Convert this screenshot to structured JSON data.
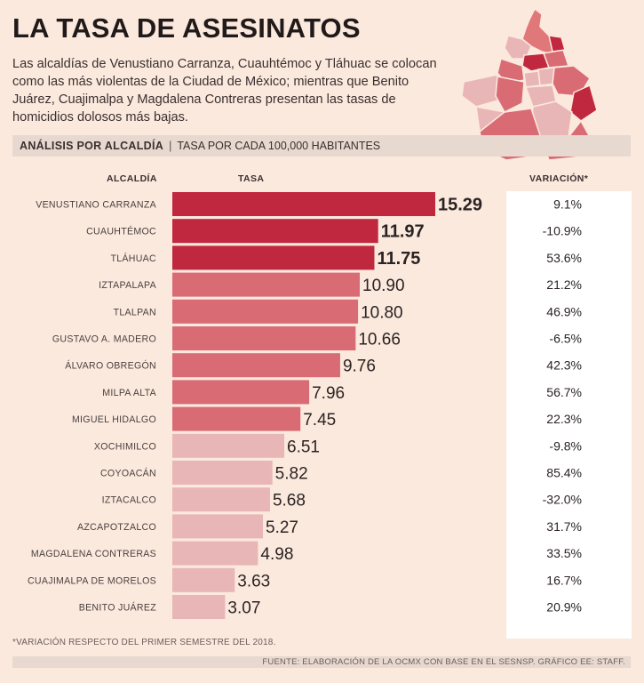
{
  "title": "LA TASA DE ASESINATOS",
  "intro": "Las alcaldías de Venustiano Carranza, Cuauhtémoc y Tláhuac se colocan como las más violentas de la Ciudad de México; mientras que Benito Juárez, Cuajimalpa y Magdalena Contreras presentan las tasas de homicidios dolosos más bajas.",
  "subheader": {
    "label": "ANÁLISIS POR ALCALDÍA",
    "separator": "|",
    "unit": "TASA POR CADA 100,000 HABITANTES"
  },
  "columns": {
    "alcaldia": "ALCALDÍA",
    "tasa": "TASA",
    "variacion": "VARIACIÓN*"
  },
  "chart_data": {
    "type": "bar",
    "orientation": "horizontal",
    "title": "LA TASA DE ASESINATOS",
    "xlabel": "TASA",
    "ylabel": "ALCALDÍA",
    "xlim": [
      0,
      15.29
    ],
    "grid": false,
    "categories": [
      "VENUSTIANO CARRANZA",
      "CUAUHTÉMOC",
      "TLÁHUAC",
      "IZTAPALAPA",
      "TLALPAN",
      "GUSTAVO A. MADERO",
      "ÁLVARO OBREGÓN",
      "MILPA ALTA",
      "MIGUEL HIDALGO",
      "XOCHIMILCO",
      "COYOACÁN",
      "IZTACALCO",
      "AZCAPOTZALCO",
      "MAGDALENA CONTRERAS",
      "CUAJIMALPA DE MORELOS",
      "BENITO JUÁREZ"
    ],
    "values": [
      15.29,
      11.97,
      11.75,
      10.9,
      10.8,
      10.66,
      9.76,
      7.96,
      7.45,
      6.51,
      5.82,
      5.68,
      5.27,
      4.98,
      3.63,
      3.07
    ],
    "value_labels": [
      "15.29",
      "11.97",
      "11.75",
      "10.90",
      "10.80",
      "10.66",
      "9.76",
      "7.96",
      "7.45",
      "6.51",
      "5.82",
      "5.68",
      "5.27",
      "4.98",
      "3.63",
      "3.07"
    ],
    "variation": [
      "9.1%",
      "-10.9%",
      "53.6%",
      "21.2%",
      "46.9%",
      "-6.5%",
      "42.3%",
      "56.7%",
      "22.3%",
      "-9.8%",
      "85.4%",
      "-32.0%",
      "31.7%",
      "33.5%",
      "16.7%",
      "20.9%"
    ],
    "tiers": [
      1,
      1,
      1,
      2,
      2,
      2,
      2,
      2,
      2,
      3,
      3,
      3,
      3,
      3,
      3,
      3
    ],
    "colors": {
      "tier1": "#c0283f",
      "tier2": "#d96b74",
      "tier3": "#e9b6b7"
    }
  },
  "footnote": "*VARIACIÓN RESPECTO DEL PRIMER SEMESTRE DEL 2018.",
  "source": "FUENTE: ELABORACIÓN DE LA OCMX CON BASE EN EL SESNSP. GRÁFICO EE: STAFF."
}
